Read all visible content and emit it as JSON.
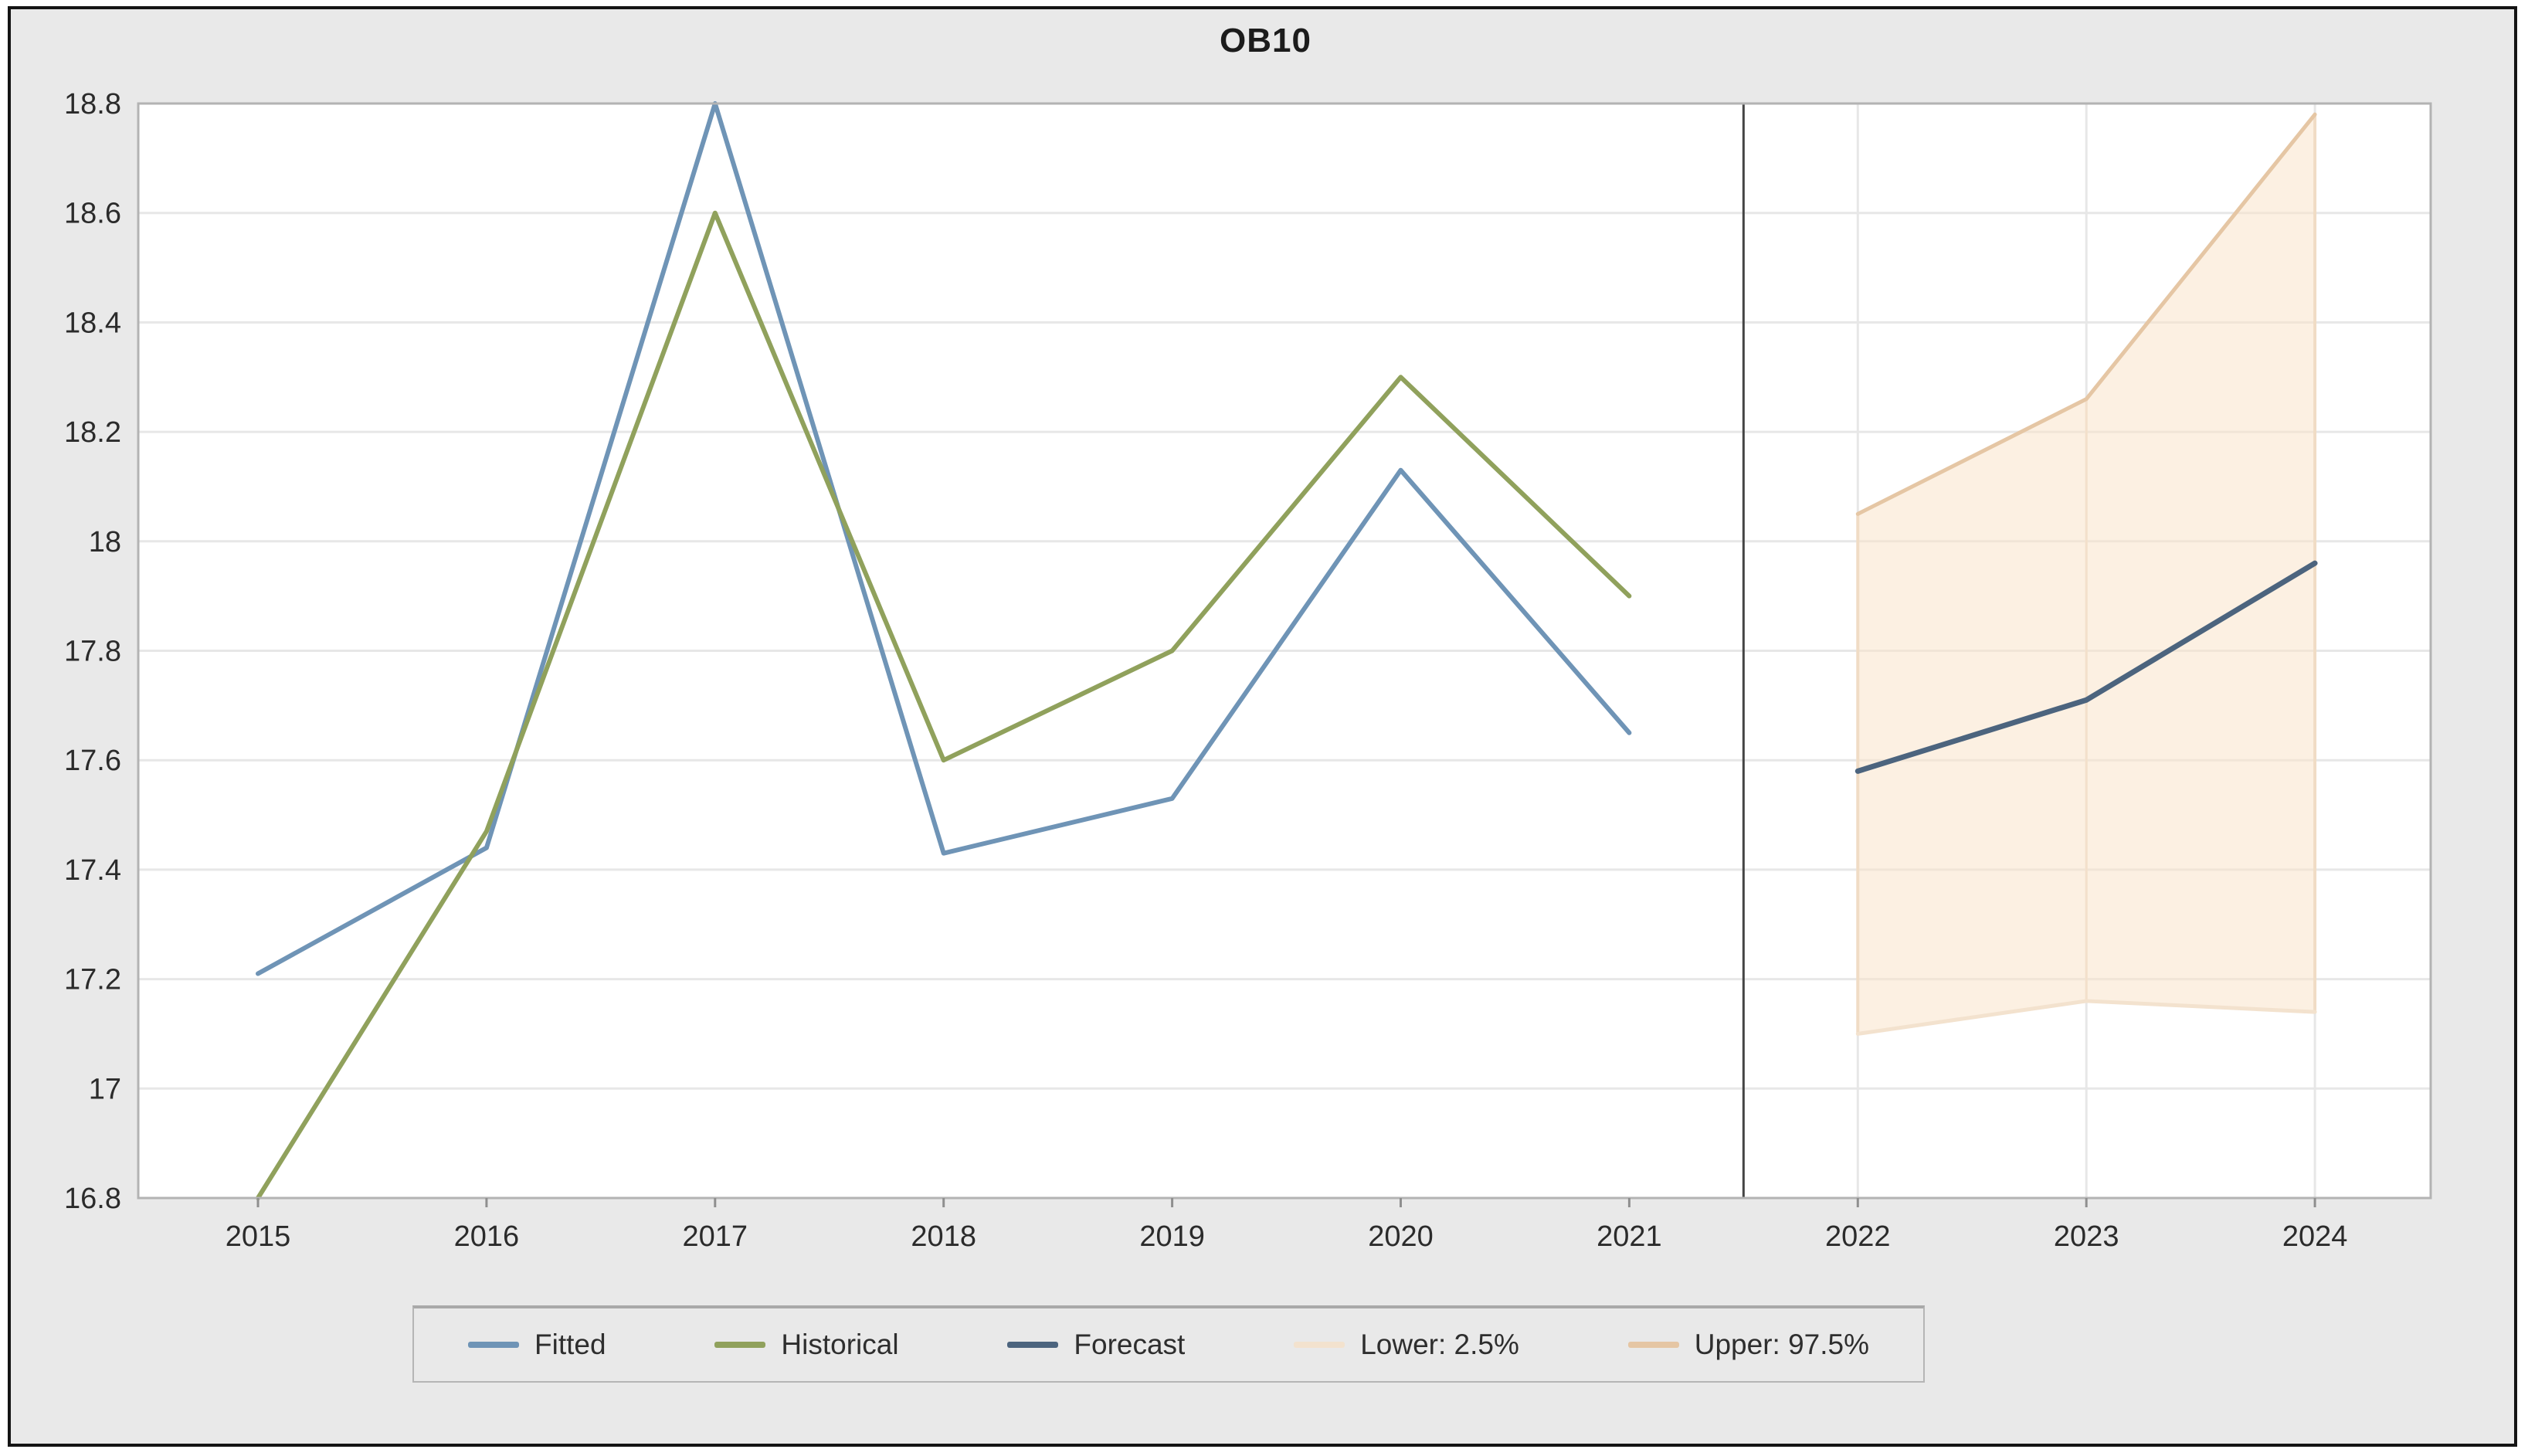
{
  "figure": {
    "title": "OB10"
  },
  "chart_data": {
    "type": "line",
    "title": "OB10",
    "xlabel": "",
    "ylabel": "",
    "ylim": [
      16.8,
      18.8
    ],
    "xlim": [
      2014.5,
      2024.5
    ],
    "grid": "horizontal-light, vertical only in forecast region",
    "legend_position": "bottom",
    "divider_x": 2021.5,
    "y_ticks": [
      "16.8",
      "17",
      "17.2",
      "17.4",
      "17.6",
      "17.8",
      "18",
      "18.2",
      "18.4",
      "18.6",
      "18.8"
    ],
    "y_tick_values": [
      16.8,
      17.0,
      17.2,
      17.4,
      17.6,
      17.8,
      18.0,
      18.2,
      18.4,
      18.6,
      18.8
    ],
    "x_ticks": [
      "2015",
      "2016",
      "2017",
      "2018",
      "2019",
      "2020",
      "2021",
      "2022",
      "2023",
      "2024"
    ],
    "x_tick_values": [
      2015,
      2016,
      2017,
      2018,
      2019,
      2020,
      2021,
      2022,
      2023,
      2024
    ],
    "band": {
      "fill_color": "#f9e3cb",
      "fill_opacity": 0.55,
      "x": [
        2022,
        2023,
        2024
      ],
      "upper": [
        18.05,
        18.26,
        18.78
      ],
      "lower": [
        17.1,
        17.16,
        17.14
      ]
    },
    "series": [
      {
        "name": "Fitted",
        "color": "#6f94b6",
        "x": [
          2015,
          2016,
          2017,
          2018,
          2019,
          2020,
          2021
        ],
        "values": [
          17.21,
          17.44,
          18.8,
          17.43,
          17.53,
          18.13,
          17.65
        ]
      },
      {
        "name": "Historical",
        "color": "#90a15c",
        "x": [
          2015,
          2016,
          2017,
          2018,
          2019,
          2020,
          2021
        ],
        "values": [
          16.8,
          17.47,
          18.6,
          17.6,
          17.8,
          18.3,
          17.9
        ]
      },
      {
        "name": "Forecast",
        "color": "#4c647e",
        "x": [
          2022,
          2023,
          2024
        ],
        "values": [
          17.58,
          17.71,
          17.96
        ]
      },
      {
        "name": "Lower: 2.5%",
        "color": "#f3e2ce",
        "x": [
          2022,
          2023,
          2024
        ],
        "values": [
          17.1,
          17.16,
          17.14
        ]
      },
      {
        "name": "Upper: 97.5%",
        "color": "#e5c6a4",
        "x": [
          2022,
          2023,
          2024
        ],
        "values": [
          18.05,
          18.26,
          18.78
        ]
      }
    ],
    "legend_order": [
      "Fitted",
      "Historical",
      "Forecast",
      "Lower: 2.5%",
      "Upper: 97.5%"
    ]
  }
}
